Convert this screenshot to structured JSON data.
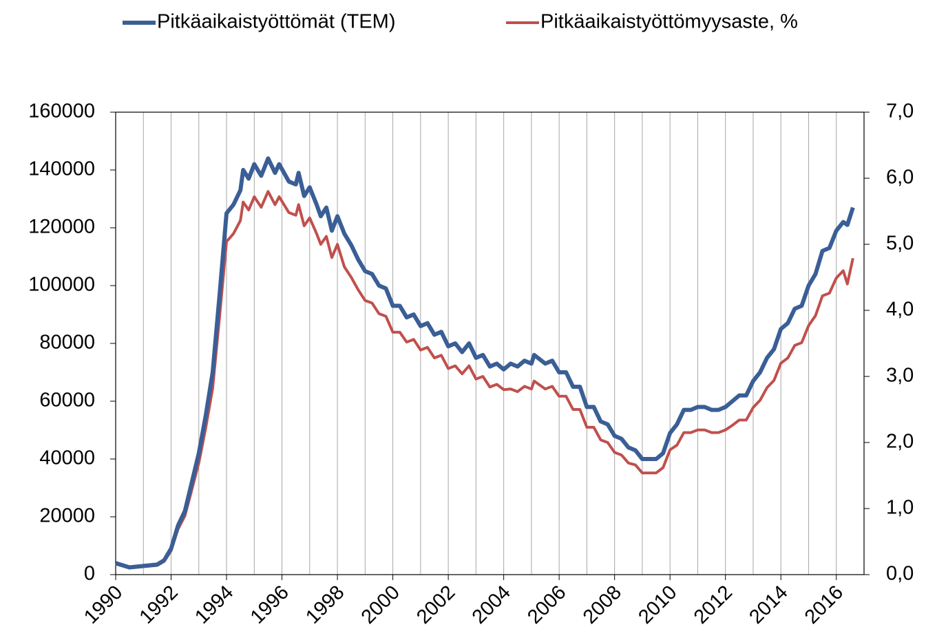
{
  "chart_data": {
    "type": "line",
    "x": [
      1990,
      1990.5,
      1991,
      1991.5,
      1991.75,
      1992,
      1992.25,
      1992.5,
      1992.75,
      1993,
      1993.25,
      1993.5,
      1993.75,
      1994,
      1994.25,
      1994.5,
      1994.6,
      1994.8,
      1995,
      1995.25,
      1995.5,
      1995.75,
      1995.9,
      1996.25,
      1996.5,
      1996.6,
      1996.8,
      1997,
      1997.25,
      1997.4,
      1997.6,
      1997.8,
      1998,
      1998.25,
      1998.5,
      1998.75,
      1999,
      1999.25,
      1999.5,
      1999.75,
      2000,
      2000.25,
      2000.5,
      2000.75,
      2001,
      2001.25,
      2001.5,
      2001.75,
      2002,
      2002.25,
      2002.5,
      2002.75,
      2003,
      2003.25,
      2003.5,
      2003.75,
      2004,
      2004.25,
      2004.5,
      2004.75,
      2005,
      2005.1,
      2005.5,
      2005.75,
      2006,
      2006.25,
      2006.5,
      2006.75,
      2007,
      2007.25,
      2007.5,
      2007.75,
      2008,
      2008.25,
      2008.5,
      2008.75,
      2009,
      2009.25,
      2009.5,
      2009.75,
      2010,
      2010.25,
      2010.5,
      2010.75,
      2011,
      2011.25,
      2011.5,
      2011.75,
      2012,
      2012.25,
      2012.5,
      2012.75,
      2013,
      2013.25,
      2013.5,
      2013.75,
      2014,
      2014.25,
      2014.5,
      2014.75,
      2015,
      2015.25,
      2015.5,
      2015.75,
      2016,
      2016.25,
      2016.4,
      2016.6
    ],
    "series": [
      {
        "name": "Pitkäaikaistyöttömät (TEM)",
        "color": "#3a5e96",
        "values": [
          4000,
          2500,
          3000,
          3500,
          5000,
          9000,
          17000,
          22000,
          32000,
          42000,
          55000,
          70000,
          97000,
          125000,
          128000,
          133000,
          140000,
          137000,
          142000,
          138000,
          144000,
          139000,
          142000,
          136000,
          135000,
          139000,
          131000,
          134000,
          128000,
          124000,
          127000,
          119000,
          124000,
          118000,
          114000,
          109000,
          105000,
          104000,
          100000,
          99000,
          93000,
          93000,
          89000,
          90000,
          86000,
          87000,
          83000,
          84000,
          79000,
          80000,
          77000,
          80000,
          75000,
          76000,
          72000,
          73000,
          71000,
          73000,
          72000,
          74000,
          73000,
          76000,
          73000,
          74000,
          70000,
          70000,
          65000,
          65000,
          58000,
          58000,
          53000,
          52000,
          48000,
          47000,
          44000,
          43000,
          40000,
          40000,
          40000,
          42000,
          49000,
          52000,
          57000,
          57000,
          58000,
          58000,
          57000,
          57000,
          58000,
          60000,
          62000,
          62000,
          67000,
          70000,
          75000,
          78000,
          85000,
          87000,
          92000,
          93000,
          100000,
          104000,
          112000,
          113000,
          119000,
          122000,
          121000,
          127000
        ]
      },
      {
        "name": "Pitkäaikaistyöttömyysaste, %",
        "color": "#c0504d",
        "axis": "y2",
        "values": [
          0.16,
          0.1,
          0.12,
          0.14,
          0.2,
          0.36,
          0.69,
          0.89,
          1.29,
          1.69,
          2.22,
          2.82,
          3.91,
          5.04,
          5.16,
          5.36,
          5.64,
          5.52,
          5.72,
          5.56,
          5.8,
          5.6,
          5.72,
          5.48,
          5.44,
          5.6,
          5.28,
          5.4,
          5.16,
          5.0,
          5.12,
          4.8,
          5.0,
          4.66,
          4.5,
          4.31,
          4.15,
          4.11,
          3.95,
          3.91,
          3.67,
          3.67,
          3.52,
          3.56,
          3.4,
          3.44,
          3.28,
          3.32,
          3.12,
          3.16,
          3.04,
          3.16,
          2.96,
          3.0,
          2.84,
          2.88,
          2.8,
          2.81,
          2.77,
          2.85,
          2.81,
          2.93,
          2.81,
          2.85,
          2.7,
          2.7,
          2.5,
          2.5,
          2.23,
          2.23,
          2.04,
          2.0,
          1.85,
          1.81,
          1.69,
          1.66,
          1.54,
          1.54,
          1.54,
          1.62,
          1.89,
          1.96,
          2.15,
          2.15,
          2.19,
          2.19,
          2.15,
          2.15,
          2.19,
          2.26,
          2.34,
          2.34,
          2.53,
          2.64,
          2.83,
          2.94,
          3.2,
          3.28,
          3.47,
          3.51,
          3.77,
          3.92,
          4.22,
          4.26,
          4.49,
          4.6,
          4.4,
          4.79
        ]
      }
    ],
    "xlim": [
      1990,
      2017
    ],
    "xticks": [
      1990,
      1992,
      1994,
      1996,
      1998,
      2000,
      2002,
      2004,
      2006,
      2008,
      2010,
      2012,
      2014,
      2016
    ],
    "xminor_ticks": [
      1991,
      1993,
      1995,
      1997,
      1999,
      2001,
      2003,
      2005,
      2007,
      2009,
      2011,
      2013,
      2015,
      2017
    ],
    "ylim": [
      0,
      160000
    ],
    "yticks": [
      0,
      20000,
      40000,
      60000,
      80000,
      100000,
      120000,
      140000,
      160000
    ],
    "y2lim": [
      0,
      7
    ],
    "y2ticks": [
      {
        "value": 0,
        "label": "0,0"
      },
      {
        "value": 1,
        "label": "1,0"
      },
      {
        "value": 2,
        "label": "2,0"
      },
      {
        "value": 3,
        "label": "3,0"
      },
      {
        "value": 4,
        "label": "4,0"
      },
      {
        "value": 5,
        "label": "5,0"
      },
      {
        "value": 6,
        "label": "6,0"
      },
      {
        "value": 7,
        "label": "7,0"
      }
    ],
    "grid": true,
    "legend": "top"
  }
}
